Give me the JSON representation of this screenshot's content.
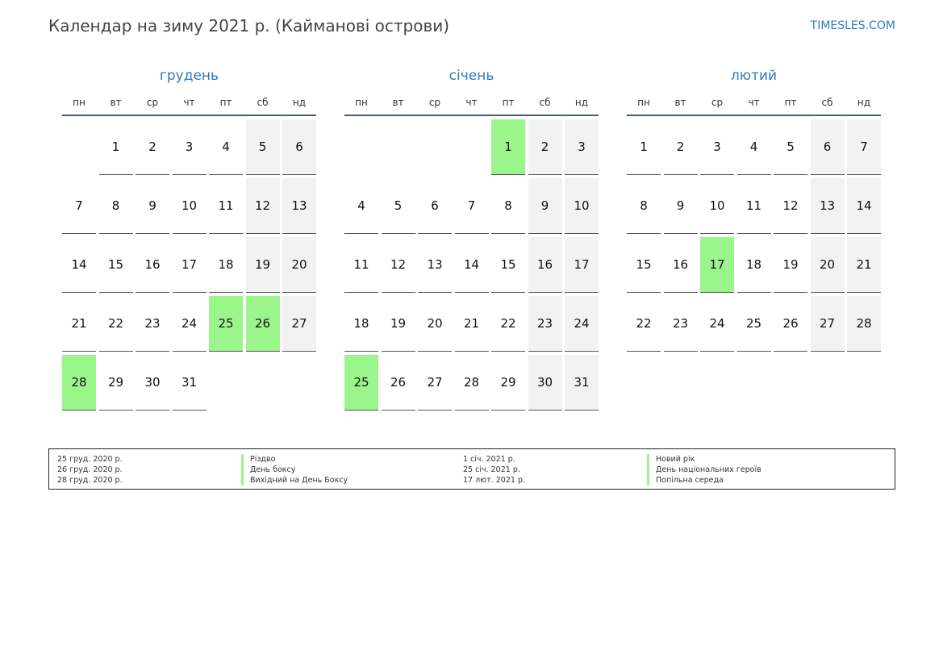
{
  "title": "Календар на зиму 2021 р. (Кайманові острови)",
  "brand": "TIMESLES.COM",
  "weekdays": [
    "пн",
    "вт",
    "ср",
    "чт",
    "пт",
    "сб",
    "нд"
  ],
  "colors": {
    "accent": "#2f7bbf",
    "holiday": "#9af58b",
    "weekend": "#f2f2f2"
  },
  "months": [
    {
      "name": "грудень",
      "first_weekday": 1,
      "days": 31,
      "holidays": [
        25,
        26,
        28
      ]
    },
    {
      "name": "січень",
      "first_weekday": 4,
      "days": 31,
      "holidays": [
        1,
        25
      ]
    },
    {
      "name": "лютий",
      "first_weekday": 0,
      "days": 28,
      "holidays": [
        17
      ]
    }
  ],
  "legend": [
    [
      {
        "date": "25 груд. 2020 р.",
        "name": "Різдво"
      },
      {
        "date": "26 груд. 2020 р.",
        "name": "День боксу"
      },
      {
        "date": "28 груд. 2020 р.",
        "name": "Вихідний на День Боксу"
      }
    ],
    [
      {
        "date": "1 січ. 2021 р.",
        "name": "Новий рік"
      },
      {
        "date": "25 січ. 2021 р.",
        "name": "День національних героїв"
      },
      {
        "date": "17 лют. 2021 р.",
        "name": "Попільна середа"
      }
    ]
  ]
}
